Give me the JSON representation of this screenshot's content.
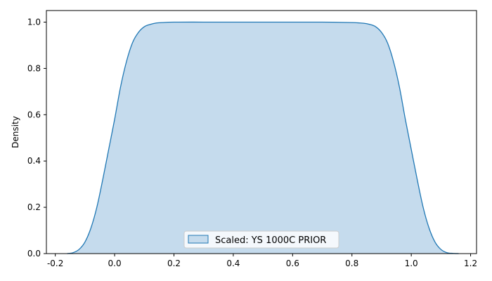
{
  "chart_data": {
    "type": "area",
    "title": "",
    "xlabel": "",
    "ylabel": "Density",
    "xlim": [
      -0.23,
      1.22
    ],
    "ylim": [
      0.0,
      1.05
    ],
    "xticks": [
      "-0.2",
      "0.0",
      "0.2",
      "0.4",
      "0.6",
      "0.8",
      "1.0",
      "1.2"
    ],
    "yticks": [
      "0.0",
      "0.2",
      "0.4",
      "0.6",
      "0.8",
      "1.0"
    ],
    "grid": false,
    "legend_position": "bottom-center",
    "series": [
      {
        "name": "Scaled: YS 1000C PRIOR",
        "line_color": "#1f77b4",
        "fill_color": "#c5dbed",
        "x": [
          -0.16,
          -0.14,
          -0.12,
          -0.1,
          -0.08,
          -0.06,
          -0.04,
          -0.02,
          0.0,
          0.02,
          0.04,
          0.06,
          0.08,
          0.1,
          0.12,
          0.14,
          0.16,
          0.2,
          0.3,
          0.4,
          0.5,
          0.6,
          0.7,
          0.8,
          0.84,
          0.86,
          0.88,
          0.9,
          0.92,
          0.94,
          0.96,
          0.98,
          1.0,
          1.02,
          1.04,
          1.06,
          1.08,
          1.1,
          1.12,
          1.14,
          1.16
        ],
        "y": [
          0.0,
          0.004,
          0.018,
          0.05,
          0.11,
          0.2,
          0.32,
          0.45,
          0.58,
          0.72,
          0.83,
          0.91,
          0.955,
          0.98,
          0.99,
          0.996,
          0.998,
          1.0,
          1.0,
          1.0,
          1.0,
          1.0,
          1.0,
          0.998,
          0.995,
          0.99,
          0.98,
          0.955,
          0.91,
          0.83,
          0.72,
          0.58,
          0.45,
          0.32,
          0.2,
          0.11,
          0.05,
          0.018,
          0.004,
          0.001,
          0.0
        ]
      }
    ]
  }
}
